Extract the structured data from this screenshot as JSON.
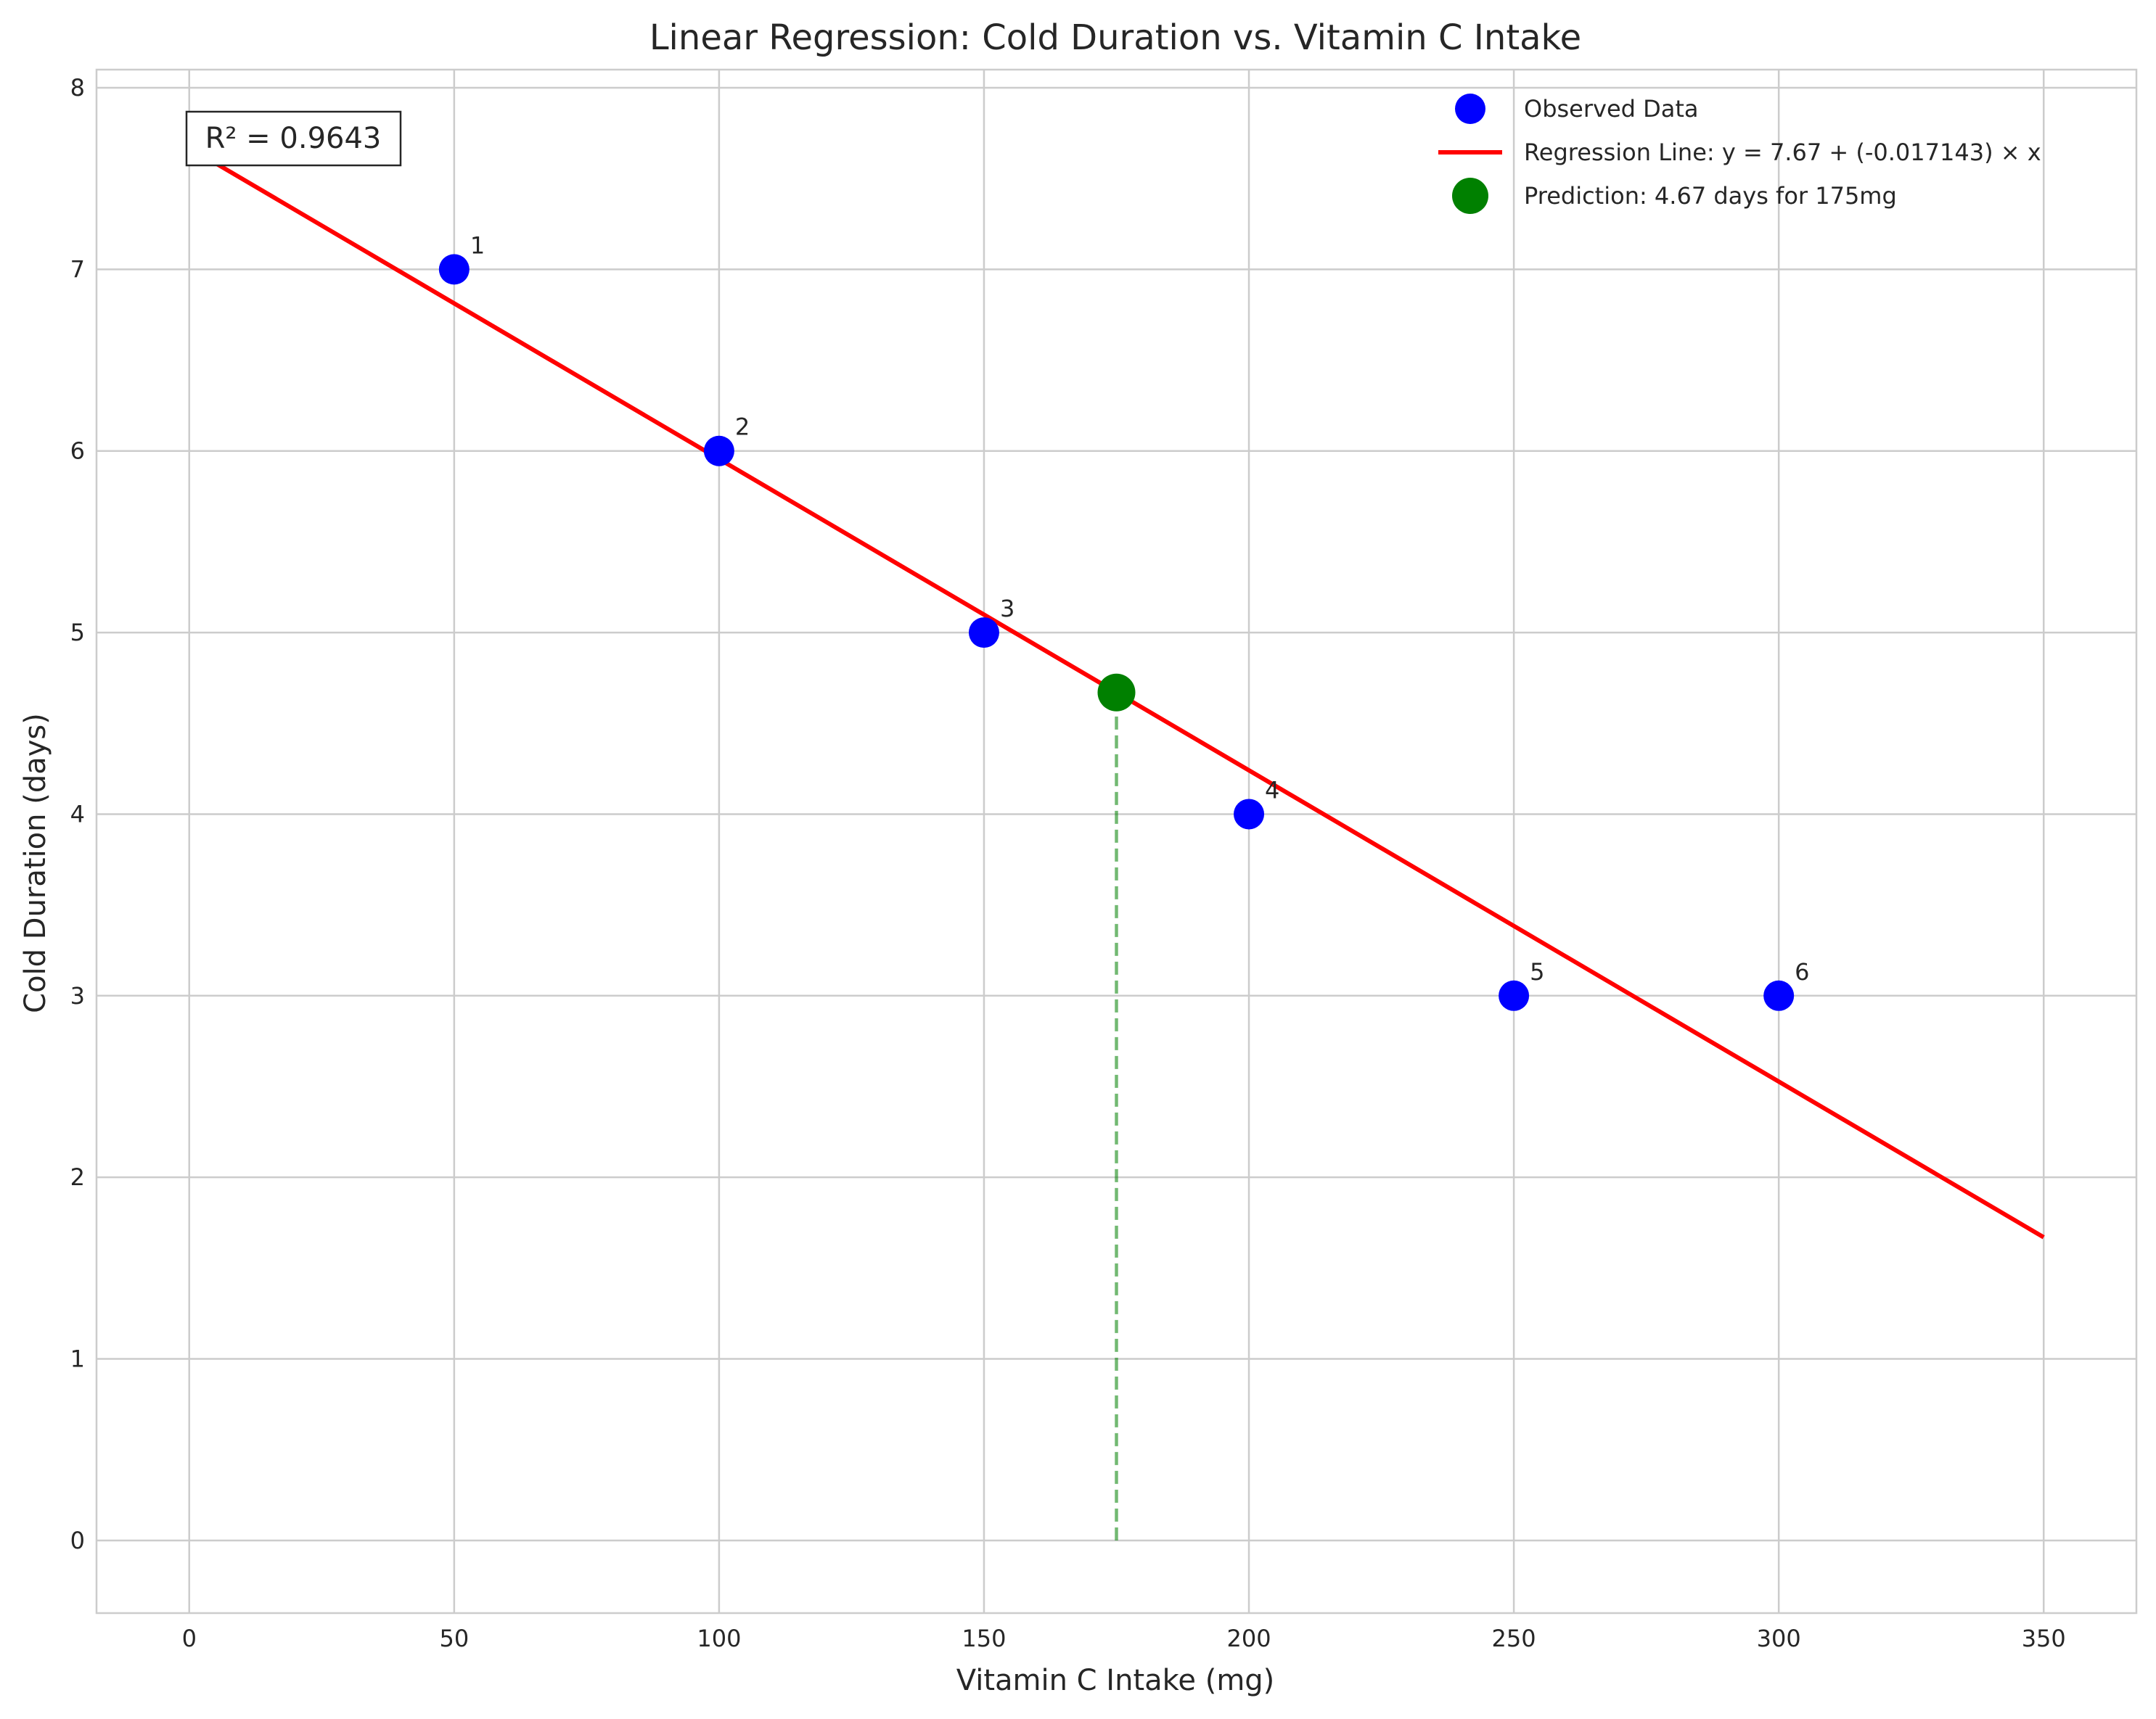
{
  "chart_data": {
    "type": "scatter",
    "title": "Linear Regression: Cold Duration vs. Vitamin C Intake",
    "xlabel": "Vitamin C Intake (mg)",
    "ylabel": "Cold Duration (days)",
    "xlim": [
      -17.5,
      367.5
    ],
    "ylim": [
      -0.4,
      8.1
    ],
    "xticks": [
      0,
      50,
      100,
      150,
      200,
      250,
      300,
      350
    ],
    "yticks": [
      0,
      1,
      2,
      3,
      4,
      5,
      6,
      7,
      8
    ],
    "grid": true,
    "legend_placement": "top-right",
    "series": [
      {
        "name": "Observed Data",
        "kind": "scatter",
        "color": "#0000ff",
        "points": [
          {
            "x": 50,
            "y": 7,
            "label": "1"
          },
          {
            "x": 100,
            "y": 6,
            "label": "2"
          },
          {
            "x": 150,
            "y": 5,
            "label": "3"
          },
          {
            "x": 200,
            "y": 4,
            "label": "4"
          },
          {
            "x": 250,
            "y": 3,
            "label": "5"
          },
          {
            "x": 300,
            "y": 3,
            "label": "6"
          }
        ]
      },
      {
        "name": "Regression Line: y = 7.67 + (-0.017143) × x",
        "kind": "line",
        "color": "#ff0000",
        "intercept": 7.67,
        "slope": -0.017143,
        "x_range": [
          0,
          350
        ]
      },
      {
        "name": "Prediction: 4.67 days for 175mg",
        "kind": "scatter",
        "color": "#008000",
        "points": [
          {
            "x": 175,
            "y": 4.67
          }
        ]
      }
    ],
    "prediction_guide": {
      "x": 175,
      "y_from": 0,
      "y_to": 4.67,
      "color": "#008000",
      "style": "dashed"
    },
    "annotation": "R² = 0.9643"
  }
}
